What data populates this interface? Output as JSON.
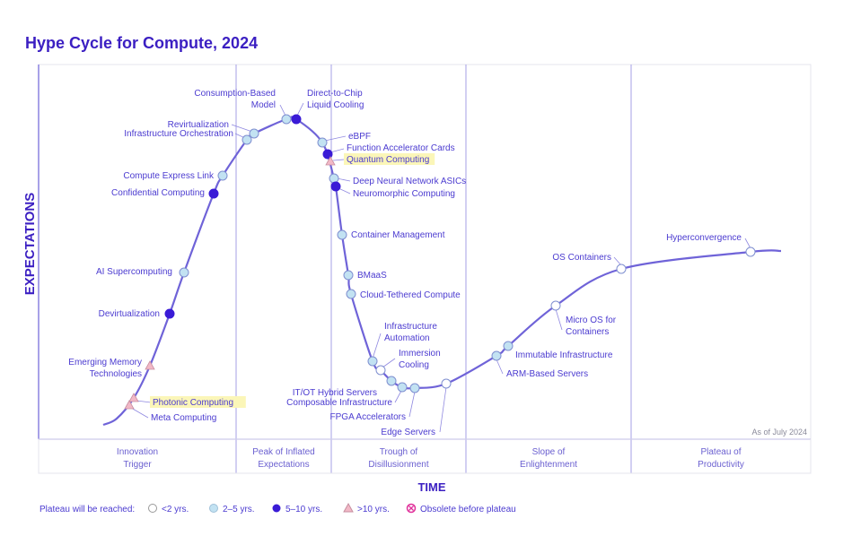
{
  "title": "Hype Cycle for Compute, 2024",
  "y_axis_label": "EXPECTATIONS",
  "x_axis_label": "TIME",
  "as_of": "As of July 2024",
  "phases": [
    [
      "Innovation",
      "Trigger"
    ],
    [
      "Peak of Inflated",
      "Expectations"
    ],
    [
      "Trough of",
      "Disillusionment"
    ],
    [
      "Slope of",
      "Enlightenment"
    ],
    [
      "Plateau of",
      "Productivity"
    ]
  ],
  "legend": {
    "prefix": "Plateau will be reached:",
    "items": [
      {
        "key": "lt2",
        "label": "<2 yrs."
      },
      {
        "key": "2to5",
        "label": "2–5 yrs."
      },
      {
        "key": "5to10",
        "label": "5–10 yrs."
      },
      {
        "key": "gt10",
        "label": ">10 yrs."
      },
      {
        "key": "obsolete",
        "label": "Obsolete before plateau"
      }
    ]
  },
  "colors": {
    "text": "#4b3bd0",
    "title": "#3b1fc2",
    "curve": "#6f63d8",
    "dark": "#3a1bd6",
    "light": "#c2e2f2",
    "tri": "#f2b8c6",
    "obsolete": "#e0309a",
    "highlight": "#fbf6b8"
  },
  "chart_data": {
    "type": "hype-cycle",
    "technologies": [
      {
        "name": "Photonic Computing",
        "plateau": "gt10",
        "highlight": true
      },
      {
        "name": "Meta Computing",
        "plateau": "gt10"
      },
      {
        "name": "Emerging Memory Technologies",
        "plateau": "gt10"
      },
      {
        "name": "Devirtualization",
        "plateau": "5to10"
      },
      {
        "name": "AI Supercomputing",
        "plateau": "2to5"
      },
      {
        "name": "Confidential Computing",
        "plateau": "5to10"
      },
      {
        "name": "Compute Express Link",
        "plateau": "2to5"
      },
      {
        "name": "Infrastructure Orchestration",
        "plateau": "2to5"
      },
      {
        "name": "Revirtualization",
        "plateau": "2to5"
      },
      {
        "name": "Consumption-Based Model",
        "plateau": "2to5"
      },
      {
        "name": "Direct-to-Chip Liquid Cooling",
        "plateau": "5to10"
      },
      {
        "name": "eBPF",
        "plateau": "2to5"
      },
      {
        "name": "Function Accelerator Cards",
        "plateau": "5to10"
      },
      {
        "name": "Quantum Computing",
        "plateau": "gt10",
        "highlight": true
      },
      {
        "name": "Deep Neural Network ASICs",
        "plateau": "2to5"
      },
      {
        "name": "Neuromorphic Computing",
        "plateau": "5to10"
      },
      {
        "name": "Container Management",
        "plateau": "2to5"
      },
      {
        "name": "BMaaS",
        "plateau": "2to5"
      },
      {
        "name": "Cloud-Tethered Compute",
        "plateau": "2to5"
      },
      {
        "name": "Infrastructure Automation",
        "plateau": "2to5"
      },
      {
        "name": "Immersion Cooling",
        "plateau": "lt2"
      },
      {
        "name": "IT/OT Hybrid Servers",
        "plateau": "2to5"
      },
      {
        "name": "Composable Infrastructure",
        "plateau": "2to5"
      },
      {
        "name": "FPGA Accelerators",
        "plateau": "2to5"
      },
      {
        "name": "Edge Servers",
        "plateau": "lt2"
      },
      {
        "name": "ARM-Based Servers",
        "plateau": "2to5"
      },
      {
        "name": "Immutable Infrastructure",
        "plateau": "2to5"
      },
      {
        "name": "Micro OS for Containers",
        "plateau": "lt2"
      },
      {
        "name": "OS Containers",
        "plateau": "lt2"
      },
      {
        "name": "Hyperconvergence",
        "plateau": "lt2"
      }
    ]
  }
}
